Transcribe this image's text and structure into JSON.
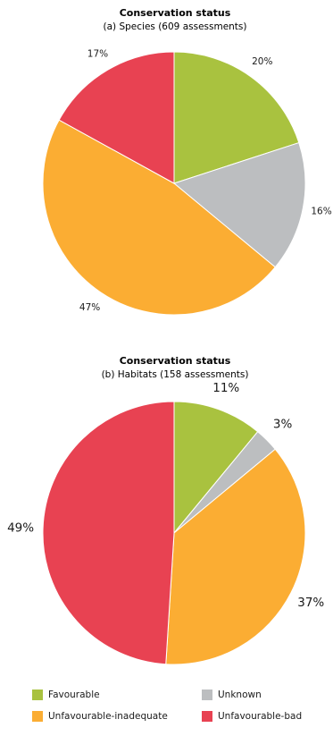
{
  "chart_data": [
    {
      "type": "pie",
      "title": "Conservation status",
      "subtitle": "(a) Species (609 assessments)",
      "slices": [
        {
          "name": "Favourable",
          "value": 20,
          "label": "20%",
          "color": "#a9c23f"
        },
        {
          "name": "Unknown",
          "value": 16,
          "label": "16%",
          "color": "#bcbec0"
        },
        {
          "name": "Unfavourable-inadequate",
          "value": 47,
          "label": "47%",
          "color": "#fbad33"
        },
        {
          "name": "Unfavourable-bad",
          "value": 17,
          "label": "17%",
          "color": "#e84252"
        }
      ]
    },
    {
      "type": "pie",
      "title": "Conservation status",
      "subtitle": "(b) Habitats (158 assessments)",
      "slices": [
        {
          "name": "Favourable",
          "value": 11,
          "label": "11%",
          "color": "#a9c23f"
        },
        {
          "name": "Unknown",
          "value": 3,
          "label": "3%",
          "color": "#bcbec0"
        },
        {
          "name": "Unfavourable-inadequate",
          "value": 37,
          "label": "37%",
          "color": "#fbad33"
        },
        {
          "name": "Unfavourable-bad",
          "value": 49,
          "label": "49%",
          "color": "#e84252"
        }
      ]
    }
  ],
  "legend": [
    {
      "label": "Favourable",
      "color": "#a9c23f"
    },
    {
      "label": "Unknown",
      "color": "#bcbec0"
    },
    {
      "label": "Unfavourable-inadequate",
      "color": "#fbad33"
    },
    {
      "label": "Unfavourable-bad",
      "color": "#e84252"
    }
  ]
}
